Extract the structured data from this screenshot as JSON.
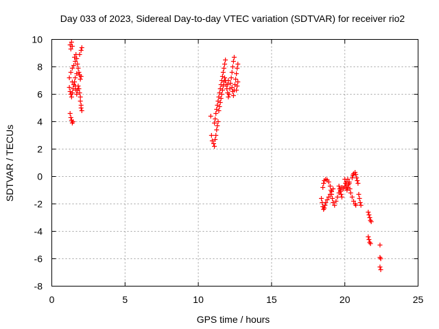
{
  "chart_data": {
    "type": "scatter",
    "title": "Day 033 of 2023, Sidereal Day-to-day VTEC variation (SDTVAR) for receiver rio2",
    "xlabel": "GPS time / hours",
    "ylabel": "SDTVAR / TECUs",
    "xlim": [
      0,
      25
    ],
    "ylim": [
      -8,
      10
    ],
    "xticks": [
      0,
      5,
      10,
      15,
      20,
      25
    ],
    "yticks": [
      -8,
      -6,
      -4,
      -2,
      0,
      2,
      4,
      6,
      8,
      10
    ],
    "grid": true,
    "marker": "+",
    "color": "#ff0000",
    "series": [
      {
        "points": [
          [
            1.25,
            9.6
          ],
          [
            1.3,
            9.3
          ],
          [
            1.35,
            9.8
          ],
          [
            1.4,
            9.5
          ],
          [
            1.2,
            7.2
          ],
          [
            1.3,
            7.6
          ],
          [
            1.4,
            7.9
          ],
          [
            1.5,
            8.1
          ],
          [
            1.6,
            8.4
          ],
          [
            1.55,
            8.7
          ],
          [
            1.65,
            8.9
          ],
          [
            1.7,
            8.6
          ],
          [
            1.75,
            8.2
          ],
          [
            1.8,
            7.9
          ],
          [
            1.85,
            7.6
          ],
          [
            1.9,
            7.4
          ],
          [
            1.95,
            7.1
          ],
          [
            2.0,
            7.3
          ],
          [
            1.9,
            8.9
          ],
          [
            2.0,
            9.2
          ],
          [
            2.05,
            9.4
          ],
          [
            1.2,
            6.5
          ],
          [
            1.25,
            6.2
          ],
          [
            1.3,
            6.0
          ],
          [
            1.35,
            5.8
          ],
          [
            1.4,
            6.1
          ],
          [
            1.45,
            6.4
          ],
          [
            1.5,
            6.7
          ],
          [
            1.55,
            6.9
          ],
          [
            1.6,
            6.6
          ],
          [
            1.65,
            6.3
          ],
          [
            1.7,
            6.0
          ],
          [
            1.75,
            6.3
          ],
          [
            1.8,
            6.6
          ],
          [
            1.85,
            6.4
          ],
          [
            1.9,
            6.1
          ],
          [
            1.95,
            5.8
          ],
          [
            1.95,
            5.5
          ],
          [
            2.0,
            5.2
          ],
          [
            2.0,
            5.0
          ],
          [
            2.05,
            4.8
          ],
          [
            1.6,
            7.2
          ],
          [
            1.7,
            7.5
          ],
          [
            1.4,
            6.9
          ],
          [
            1.25,
            4.6
          ],
          [
            1.3,
            4.3
          ],
          [
            1.35,
            4.1
          ],
          [
            1.4,
            3.9
          ],
          [
            1.45,
            4.0
          ]
        ]
      },
      {
        "points": [
          [
            10.85,
            4.4
          ],
          [
            10.9,
            3.0
          ],
          [
            10.95,
            2.6
          ],
          [
            11.05,
            2.4
          ],
          [
            11.1,
            2.2
          ],
          [
            11.15,
            2.7
          ],
          [
            11.2,
            3.0
          ],
          [
            11.25,
            3.4
          ],
          [
            11.3,
            3.7
          ],
          [
            11.35,
            4.0
          ],
          [
            11.1,
            3.9
          ],
          [
            11.15,
            4.2
          ],
          [
            11.2,
            4.6
          ],
          [
            11.25,
            4.9
          ],
          [
            11.3,
            5.2
          ],
          [
            11.35,
            5.5
          ],
          [
            11.4,
            5.8
          ],
          [
            11.45,
            6.1
          ],
          [
            11.5,
            6.4
          ],
          [
            11.55,
            6.7
          ],
          [
            11.6,
            7.0
          ],
          [
            11.65,
            7.3
          ],
          [
            11.7,
            7.6
          ],
          [
            11.75,
            7.9
          ],
          [
            11.8,
            8.2
          ],
          [
            11.85,
            8.5
          ],
          [
            11.4,
            4.8
          ],
          [
            11.45,
            5.1
          ],
          [
            11.5,
            5.4
          ],
          [
            11.55,
            5.7
          ],
          [
            11.6,
            6.0
          ],
          [
            11.65,
            6.3
          ],
          [
            11.7,
            6.6
          ],
          [
            11.75,
            6.9
          ],
          [
            11.8,
            7.2
          ],
          [
            11.85,
            7.0
          ],
          [
            11.9,
            6.7
          ],
          [
            11.95,
            6.4
          ],
          [
            12.0,
            6.1
          ],
          [
            12.05,
            5.8
          ],
          [
            12.1,
            6.0
          ],
          [
            12.15,
            6.4
          ],
          [
            12.2,
            6.8
          ],
          [
            12.25,
            7.2
          ],
          [
            12.3,
            7.6
          ],
          [
            12.35,
            8.0
          ],
          [
            12.4,
            8.4
          ],
          [
            12.45,
            8.7
          ],
          [
            12.3,
            6.5
          ],
          [
            12.35,
            6.2
          ],
          [
            12.4,
            5.9
          ],
          [
            12.45,
            6.3
          ],
          [
            12.5,
            6.7
          ],
          [
            12.55,
            7.1
          ],
          [
            12.6,
            7.5
          ],
          [
            12.65,
            7.9
          ],
          [
            12.7,
            8.2
          ],
          [
            12.6,
            6.3
          ],
          [
            12.65,
            6.6
          ],
          [
            12.7,
            6.9
          ],
          [
            12.0,
            6.7
          ],
          [
            12.05,
            7.0
          ]
        ]
      },
      {
        "points": [
          [
            18.4,
            -1.6
          ],
          [
            18.45,
            -1.9
          ],
          [
            18.5,
            -2.2
          ],
          [
            18.55,
            -2.4
          ],
          [
            18.6,
            -2.3
          ],
          [
            18.65,
            -2.1
          ],
          [
            18.7,
            -1.9
          ],
          [
            18.5,
            -0.8
          ],
          [
            18.55,
            -0.5
          ],
          [
            18.6,
            -0.3
          ],
          [
            18.7,
            -0.2
          ],
          [
            18.8,
            -0.25
          ],
          [
            18.9,
            -0.4
          ],
          [
            19.0,
            -0.7
          ],
          [
            19.05,
            -1.0
          ],
          [
            19.1,
            -1.3
          ],
          [
            19.15,
            -1.6
          ],
          [
            19.2,
            -1.9
          ],
          [
            18.8,
            -1.7
          ],
          [
            18.9,
            -1.5
          ],
          [
            19.0,
            -1.3
          ],
          [
            19.1,
            -1.1
          ],
          [
            19.2,
            -0.9
          ],
          [
            19.3,
            -2.1
          ],
          [
            19.4,
            -1.8
          ],
          [
            19.5,
            -1.5
          ],
          [
            19.6,
            -1.2
          ],
          [
            19.7,
            -1.0
          ],
          [
            19.8,
            -0.8
          ],
          [
            19.9,
            -0.9
          ],
          [
            20.0,
            -0.7
          ],
          [
            20.1,
            -0.4
          ],
          [
            20.2,
            -0.2
          ],
          [
            20.3,
            -0.5
          ],
          [
            20.35,
            -0.9
          ],
          [
            20.4,
            -1.2
          ],
          [
            20.5,
            -1.5
          ],
          [
            20.6,
            -1.8
          ],
          [
            20.7,
            -2.0
          ],
          [
            20.75,
            -2.1
          ],
          [
            20.5,
            -0.1
          ],
          [
            20.55,
            0.1
          ],
          [
            20.6,
            0.2
          ],
          [
            20.7,
            0.3
          ],
          [
            20.75,
            0.15
          ],
          [
            20.8,
            -0.1
          ],
          [
            20.85,
            -0.3
          ],
          [
            20.9,
            -0.5
          ],
          [
            20.0,
            -0.2
          ],
          [
            20.05,
            -0.5
          ],
          [
            20.1,
            -0.8
          ],
          [
            20.15,
            -1.0
          ],
          [
            20.2,
            -0.8
          ],
          [
            20.25,
            -0.6
          ],
          [
            20.3,
            -0.4
          ],
          [
            19.6,
            -0.7
          ],
          [
            19.65,
            -0.9
          ],
          [
            19.7,
            -1.1
          ],
          [
            19.75,
            -1.3
          ],
          [
            19.8,
            -1.5
          ],
          [
            20.95,
            -1.3
          ],
          [
            21.0,
            -1.6
          ],
          [
            21.05,
            -1.9
          ],
          [
            21.1,
            -2.1
          ],
          [
            21.6,
            -2.6
          ],
          [
            21.65,
            -2.8
          ],
          [
            21.7,
            -3.0
          ],
          [
            21.75,
            -3.2
          ],
          [
            21.8,
            -3.3
          ],
          [
            21.6,
            -4.4
          ],
          [
            21.65,
            -4.6
          ],
          [
            21.7,
            -4.8
          ],
          [
            21.75,
            -4.9
          ],
          [
            22.4,
            -5.0
          ],
          [
            22.4,
            -5.9
          ],
          [
            22.45,
            -6.0
          ],
          [
            22.4,
            -6.6
          ],
          [
            22.45,
            -6.8
          ]
        ]
      }
    ]
  }
}
